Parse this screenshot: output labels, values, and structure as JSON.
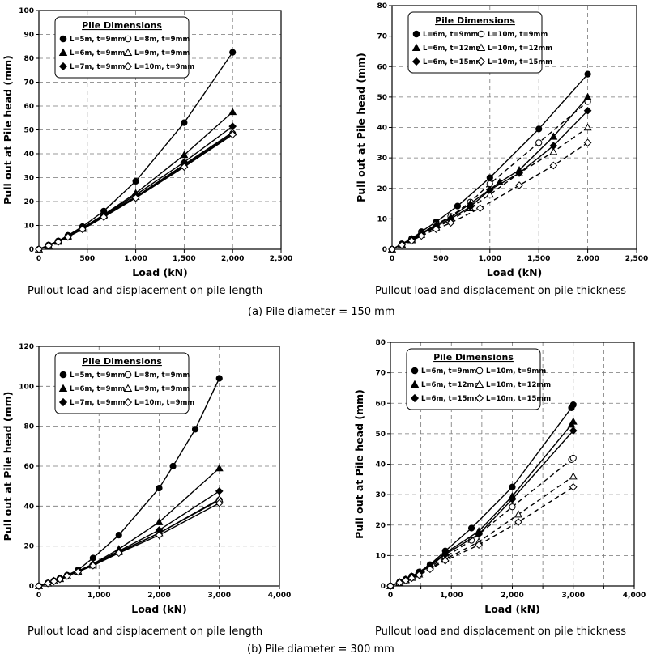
{
  "figure": {
    "caption_a": "(a) Pile diameter = 150 mm",
    "caption_b": "(b) Pile diameter = 300 mm"
  },
  "chart_data": [
    {
      "id": "a1",
      "type": "line",
      "subtitle": "Pullout load and displacement on pile length",
      "xlabel": "Load (kN)",
      "ylabel": "Pull out at Pile head (mm)",
      "xlim": [
        0,
        2500
      ],
      "ylim": [
        0,
        100
      ],
      "xticks": [
        0,
        500,
        1000,
        1500,
        2000,
        2500
      ],
      "xtick_labels": [
        "0",
        "500",
        "1,000",
        "1,500",
        "2,000",
        "2,500"
      ],
      "yticks": [
        0,
        10,
        20,
        30,
        40,
        50,
        60,
        70,
        80,
        90,
        100
      ],
      "ytick_labels": [
        "0",
        "10",
        "20",
        "30",
        "40",
        "50",
        "60",
        "70",
        "80",
        "90",
        "100"
      ],
      "grid": true,
      "legend": {
        "title": "Pile Dimensions",
        "placement": "top-left",
        "columns": 2
      },
      "series": [
        {
          "name": "L=5m, t=9mm",
          "marker": "circle",
          "filled": true,
          "dashed": false,
          "x": [
            0,
            100,
            200,
            300,
            450,
            670,
            1000,
            1500,
            2000
          ],
          "y": [
            0,
            1.8,
            3.5,
            5.8,
            9.5,
            16,
            28.5,
            53,
            82.5
          ]
        },
        {
          "name": "L=8m, t=9mm",
          "marker": "circle",
          "filled": false,
          "dashed": false,
          "x": [
            0,
            100,
            200,
            300,
            450,
            670,
            1000,
            1500,
            2000
          ],
          "y": [
            0,
            1.5,
            3.2,
            5.2,
            8.5,
            13.8,
            22,
            35,
            48.5
          ]
        },
        {
          "name": "L=6m, t=9mm",
          "marker": "triangle",
          "filled": true,
          "dashed": false,
          "x": [
            0,
            100,
            200,
            300,
            450,
            670,
            1000,
            1500,
            2000
          ],
          "y": [
            0,
            1.6,
            3.4,
            5.6,
            9,
            14.5,
            23.5,
            39.5,
            57.5
          ]
        },
        {
          "name": "L=9m, t=9mm",
          "marker": "triangle",
          "filled": false,
          "dashed": false,
          "x": [
            0,
            100,
            200,
            300,
            450,
            670,
            1000,
            1500,
            2000
          ],
          "y": [
            0,
            1.5,
            3.2,
            5.3,
            8.6,
            14,
            22,
            35.5,
            49
          ]
        },
        {
          "name": "L=7m, t=9mm",
          "marker": "diamond",
          "filled": true,
          "dashed": false,
          "x": [
            0,
            100,
            200,
            300,
            450,
            670,
            1000,
            1500,
            2000
          ],
          "y": [
            0,
            1.6,
            3.3,
            5.5,
            8.9,
            14.2,
            22.8,
            36.5,
            51.5
          ]
        },
        {
          "name": "L=10m, t=9mm",
          "marker": "diamond",
          "filled": false,
          "dashed": false,
          "x": [
            0,
            100,
            200,
            300,
            450,
            670,
            1000,
            1500,
            2000
          ],
          "y": [
            0,
            1.5,
            3.1,
            5.2,
            8.4,
            13.5,
            21.5,
            34.5,
            48
          ]
        }
      ]
    },
    {
      "id": "a2",
      "type": "line",
      "subtitle": "Pullout load and displacement on pile thickness",
      "xlabel": "Load (kN)",
      "ylabel": "Pull out at Pile head (mm)",
      "xlim": [
        0,
        2500
      ],
      "ylim": [
        0,
        80
      ],
      "xticks": [
        0,
        500,
        1000,
        1500,
        2000,
        2500
      ],
      "xtick_labels": [
        "0",
        "500",
        "1,000",
        "1,500",
        "2,000",
        "2,500"
      ],
      "yticks": [
        0,
        10,
        20,
        30,
        40,
        50,
        60,
        70,
        80
      ],
      "ytick_labels": [
        "0",
        "10",
        "20",
        "30",
        "40",
        "50",
        "60",
        "70",
        "80"
      ],
      "grid": true,
      "legend": {
        "title": "Pile Dimensions",
        "placement": "top-left",
        "columns": 2
      },
      "series": [
        {
          "name": "L=6m, t=9mm",
          "marker": "circle",
          "filled": true,
          "dashed": false,
          "x": [
            0,
            100,
            200,
            300,
            450,
            670,
            1000,
            1500,
            2000
          ],
          "y": [
            0,
            1.8,
            3.5,
            5.8,
            9,
            14.2,
            23.5,
            39.5,
            57.5
          ]
        },
        {
          "name": "L=10m, t=9mm",
          "marker": "circle",
          "filled": false,
          "dashed": true,
          "x": [
            0,
            100,
            200,
            300,
            450,
            600,
            800,
            1000,
            1500,
            2000
          ],
          "y": [
            0,
            1.6,
            3.3,
            5.2,
            8.2,
            10.8,
            15.5,
            21.5,
            35,
            48.5
          ]
        },
        {
          "name": "L=6m, t=12mm",
          "marker": "triangle",
          "filled": true,
          "dashed": false,
          "x": [
            0,
            100,
            200,
            300,
            450,
            600,
            800,
            1100,
            1300,
            1650,
            2000
          ],
          "y": [
            0,
            1.6,
            3.3,
            5.3,
            8,
            10.5,
            15,
            22,
            26,
            37,
            50
          ]
        },
        {
          "name": "L=10m, t=12mm",
          "marker": "triangle",
          "filled": false,
          "dashed": true,
          "x": [
            0,
            100,
            200,
            300,
            450,
            600,
            800,
            1000,
            1300,
            1650,
            2000
          ],
          "y": [
            0,
            1.5,
            3,
            4.8,
            7.2,
            9.5,
            13.5,
            18,
            25,
            32,
            40
          ]
        },
        {
          "name": "L=6m, t=15mm",
          "marker": "diamond",
          "filled": true,
          "dashed": false,
          "x": [
            0,
            100,
            200,
            300,
            450,
            600,
            800,
            1000,
            1300,
            1650,
            2000
          ],
          "y": [
            0,
            1.6,
            3.2,
            5,
            7.6,
            10,
            14,
            19.5,
            25,
            34,
            45.5
          ]
        },
        {
          "name": "L=10m, t=15mm",
          "marker": "diamond",
          "filled": false,
          "dashed": true,
          "x": [
            0,
            100,
            200,
            300,
            450,
            600,
            900,
            1300,
            1650,
            2000
          ],
          "y": [
            0,
            1.4,
            2.8,
            4.4,
            6.6,
            8.7,
            13.5,
            21,
            27.5,
            35
          ]
        }
      ]
    },
    {
      "id": "b1",
      "type": "line",
      "subtitle": "Pullout load and displacement on pile length",
      "xlabel": "Load (kN)",
      "ylabel": "Pull out at Pile head (mm)",
      "xlim": [
        0,
        4000
      ],
      "ylim": [
        0,
        120
      ],
      "xticks": [
        0,
        1000,
        2000,
        3000,
        4000
      ],
      "xtick_labels": [
        "0",
        "1,000",
        "2,000",
        "3,000",
        "4,000"
      ],
      "yticks": [
        0,
        20,
        40,
        60,
        80,
        100,
        120
      ],
      "ytick_labels": [
        "0",
        "20",
        "40",
        "60",
        "80",
        "100",
        "120"
      ],
      "grid": true,
      "legend": {
        "title": "Pile Dimensions",
        "placement": "top-left",
        "columns": 2
      },
      "series": [
        {
          "name": "L=5m, t=9mm",
          "marker": "circle",
          "filled": true,
          "dashed": false,
          "x": [
            0,
            150,
            250,
            350,
            470,
            650,
            900,
            1330,
            2000,
            2230,
            2600,
            3000
          ],
          "y": [
            0,
            1.5,
            2.6,
            3.8,
            5.4,
            8,
            14,
            25.5,
            49,
            60,
            78.5,
            104
          ]
        },
        {
          "name": "L=8m, t=9mm",
          "marker": "circle",
          "filled": false,
          "dashed": false,
          "x": [
            0,
            150,
            250,
            350,
            470,
            650,
            900,
            1330,
            2000,
            3000
          ],
          "y": [
            0,
            1.3,
            2.4,
            3.5,
            5.1,
            7.2,
            10.5,
            17,
            26.5,
            43
          ]
        },
        {
          "name": "L=6m, t=9mm",
          "marker": "triangle",
          "filled": true,
          "dashed": false,
          "x": [
            0,
            150,
            250,
            350,
            470,
            650,
            900,
            1330,
            2000,
            3000
          ],
          "y": [
            0,
            1.4,
            2.5,
            3.7,
            5.2,
            7.5,
            11,
            18.5,
            32,
            59
          ]
        },
        {
          "name": "L=9m, t=9mm",
          "marker": "triangle",
          "filled": false,
          "dashed": false,
          "x": [
            0,
            150,
            250,
            350,
            470,
            650,
            900,
            1330,
            2000,
            3000
          ],
          "y": [
            0,
            1.3,
            2.4,
            3.5,
            5,
            7.2,
            10.3,
            17,
            26.5,
            43.5
          ]
        },
        {
          "name": "L=7m, t=9mm",
          "marker": "diamond",
          "filled": true,
          "dashed": false,
          "x": [
            0,
            150,
            250,
            350,
            470,
            650,
            900,
            1330,
            2000,
            3000
          ],
          "y": [
            0,
            1.4,
            2.5,
            3.6,
            5.1,
            7.4,
            10.8,
            17.5,
            28,
            47.5
          ]
        },
        {
          "name": "L=10m, t=9mm",
          "marker": "diamond",
          "filled": false,
          "dashed": false,
          "x": [
            0,
            150,
            250,
            350,
            470,
            650,
            900,
            1330,
            2000,
            3000
          ],
          "y": [
            0,
            1.3,
            2.3,
            3.4,
            5,
            7.1,
            10.2,
            16.5,
            25.5,
            41.5
          ]
        }
      ]
    },
    {
      "id": "b2",
      "type": "line",
      "subtitle": "Pullout load and displacement on pile thickness",
      "xlabel": "Load (kN)",
      "ylabel": "Pull out at Pile head (mm)",
      "xlim": [
        0,
        4000
      ],
      "ylim": [
        0,
        80
      ],
      "xticks": [
        0,
        500,
        1000,
        1500,
        2000,
        2500,
        3000,
        3500,
        4000
      ],
      "xtick_labels": [
        "0",
        "",
        "1,000",
        "",
        "2,000",
        "",
        "3,000",
        "",
        "4,000"
      ],
      "yticks": [
        0,
        10,
        20,
        30,
        40,
        50,
        60,
        70,
        80
      ],
      "ytick_labels": [
        "0",
        "10",
        "20",
        "30",
        "40",
        "50",
        "60",
        "70",
        "80"
      ],
      "grid": true,
      "legend": {
        "title": "Pile Dimensions",
        "placement": "top-left",
        "columns": 2
      },
      "series": [
        {
          "name": "L=6m, t=9mm",
          "marker": "circle",
          "filled": true,
          "dashed": false,
          "x": [
            0,
            150,
            250,
            350,
            470,
            650,
            900,
            1330,
            2000,
            2970,
            3000
          ],
          "y": [
            0,
            1.3,
            2.2,
            3.2,
            4.6,
            7,
            11.5,
            19,
            32.5,
            58.5,
            59.5
          ]
        },
        {
          "name": "L=10m, t=9mm",
          "marker": "circle",
          "filled": false,
          "dashed": true,
          "x": [
            0,
            150,
            250,
            350,
            470,
            650,
            900,
            1330,
            2000,
            2970,
            3000
          ],
          "y": [
            0,
            1.2,
            2,
            2.9,
            4.1,
            6.2,
            9.5,
            15,
            26,
            41.5,
            42
          ]
        },
        {
          "name": "L=6m, t=12mm",
          "marker": "triangle",
          "filled": true,
          "dashed": false,
          "x": [
            0,
            150,
            250,
            350,
            470,
            650,
            900,
            1450,
            2000,
            2970,
            3000
          ],
          "y": [
            0,
            1.3,
            2.1,
            3.1,
            4.4,
            6.7,
            10.8,
            18,
            29.5,
            53,
            54
          ]
        },
        {
          "name": "L=10m, t=12mm",
          "marker": "triangle",
          "filled": false,
          "dashed": true,
          "x": [
            0,
            150,
            250,
            350,
            470,
            650,
            900,
            1450,
            2100,
            3000
          ],
          "y": [
            0,
            1.1,
            1.9,
            2.7,
            3.8,
            5.8,
            8.8,
            14.5,
            23.5,
            36
          ]
        },
        {
          "name": "L=6m, t=15mm",
          "marker": "diamond",
          "filled": true,
          "dashed": false,
          "x": [
            0,
            150,
            250,
            350,
            470,
            650,
            900,
            1450,
            2000,
            3000
          ],
          "y": [
            0,
            1.2,
            2.1,
            3,
            4.3,
            6.5,
            10.4,
            17,
            28.5,
            51
          ]
        },
        {
          "name": "L=10m, t=15mm",
          "marker": "diamond",
          "filled": false,
          "dashed": true,
          "x": [
            0,
            150,
            250,
            350,
            470,
            650,
            900,
            1450,
            2100,
            3000
          ],
          "y": [
            0,
            1.1,
            1.8,
            2.6,
            3.6,
            5.5,
            8.3,
            13.5,
            21,
            32.5
          ]
        }
      ]
    }
  ]
}
